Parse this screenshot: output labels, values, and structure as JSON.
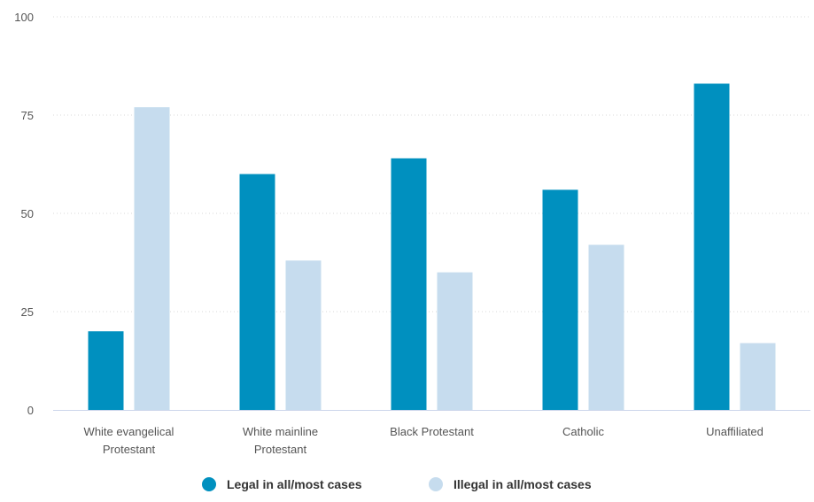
{
  "chart_data": {
    "type": "bar",
    "title": "",
    "xlabel": "",
    "ylabel": "",
    "ylim": [
      0,
      100
    ],
    "yticks": [
      0,
      25,
      50,
      75,
      100
    ],
    "grid": true,
    "legend_position": "bottom-center",
    "categories": [
      [
        "White evangelical",
        "Protestant"
      ],
      [
        "White mainline",
        "Protestant"
      ],
      [
        "Black Protestant"
      ],
      [
        "Catholic"
      ],
      [
        "Unaffiliated"
      ]
    ],
    "series": [
      {
        "name": "Legal in all/most cases",
        "color": "#0090bf",
        "values": [
          20,
          60,
          64,
          56,
          83
        ]
      },
      {
        "name": "Illegal in all/most cases",
        "color": "#c6dcee",
        "values": [
          77,
          38,
          35,
          42,
          17
        ]
      }
    ]
  }
}
